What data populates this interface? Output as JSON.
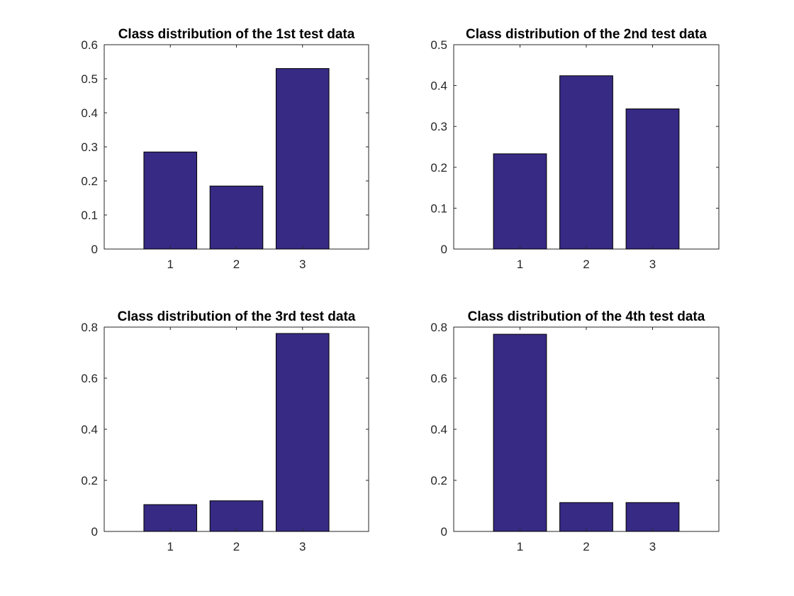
{
  "chart_data": [
    {
      "type": "bar",
      "title": "Class distribution of the 1st test data",
      "categories": [
        "1",
        "2",
        "3"
      ],
      "values": [
        0.285,
        0.185,
        0.53
      ],
      "ylim": [
        0,
        0.6
      ],
      "yticks": [
        "0",
        "0.1",
        "0.2",
        "0.3",
        "0.4",
        "0.5",
        "0.6"
      ],
      "ytick_values": [
        0,
        0.1,
        0.2,
        0.3,
        0.4,
        0.5,
        0.6
      ],
      "xlabel": "",
      "ylabel": "",
      "bar_color": "#362a84",
      "grid": false,
      "legend": false
    },
    {
      "type": "bar",
      "title": "Class distribution of the 2nd test data",
      "categories": [
        "1",
        "2",
        "3"
      ],
      "values": [
        0.233,
        0.424,
        0.343
      ],
      "ylim": [
        0,
        0.5
      ],
      "yticks": [
        "0",
        "0.1",
        "0.2",
        "0.3",
        "0.4",
        "0.5"
      ],
      "ytick_values": [
        0,
        0.1,
        0.2,
        0.3,
        0.4,
        0.5
      ],
      "xlabel": "",
      "ylabel": "",
      "bar_color": "#362a84",
      "grid": false,
      "legend": false
    },
    {
      "type": "bar",
      "title": "Class distribution of the 3rd test data",
      "categories": [
        "1",
        "2",
        "3"
      ],
      "values": [
        0.105,
        0.12,
        0.775
      ],
      "ylim": [
        0,
        0.8
      ],
      "yticks": [
        "0",
        "0.2",
        "0.4",
        "0.6",
        "0.8"
      ],
      "ytick_values": [
        0,
        0.2,
        0.4,
        0.6,
        0.8
      ],
      "xlabel": "",
      "ylabel": "",
      "bar_color": "#362a84",
      "grid": false,
      "legend": false
    },
    {
      "type": "bar",
      "title": "Class distribution of the 4th test data",
      "categories": [
        "1",
        "2",
        "3"
      ],
      "values": [
        0.772,
        0.113,
        0.113
      ],
      "ylim": [
        0,
        0.8
      ],
      "yticks": [
        "0",
        "0.2",
        "0.4",
        "0.6",
        "0.8"
      ],
      "ytick_values": [
        0,
        0.2,
        0.4,
        0.6,
        0.8
      ],
      "xlabel": "",
      "ylabel": "",
      "bar_color": "#362a84",
      "grid": false,
      "legend": false
    }
  ]
}
